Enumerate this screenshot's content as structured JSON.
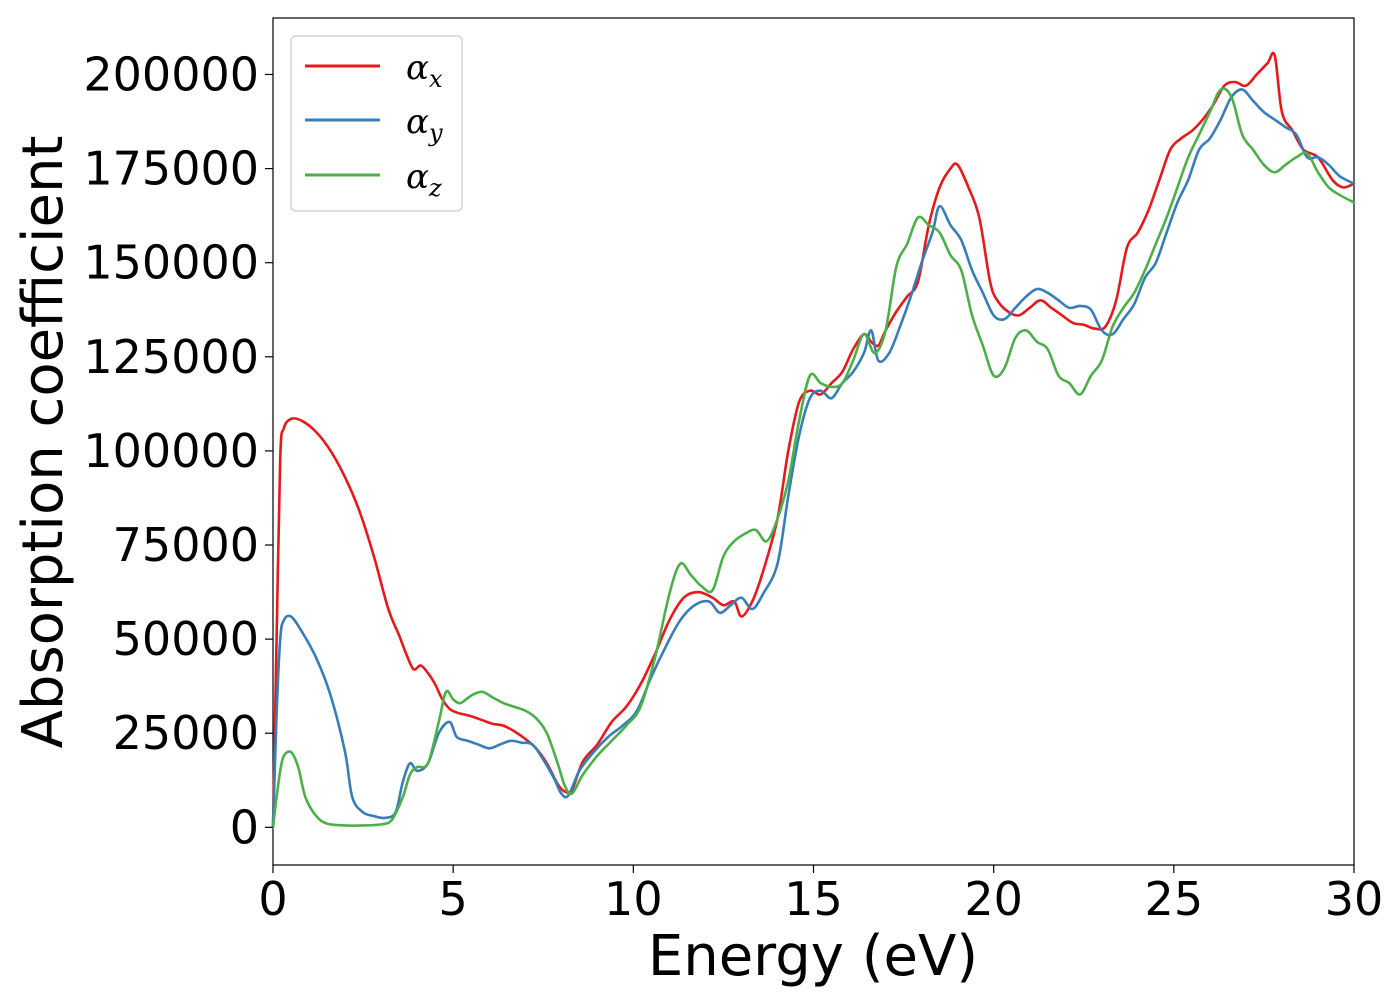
{
  "chart_data": {
    "type": "line",
    "title": "",
    "xlabel": "Energy (eV)",
    "ylabel": "Absorption coefficient",
    "xlim": [
      0,
      30
    ],
    "ylim": [
      -10000,
      215000
    ],
    "xticks": [
      0,
      5,
      10,
      15,
      20,
      25,
      30
    ],
    "xtick_labels": [
      "0",
      "5",
      "10",
      "15",
      "20",
      "25",
      "30"
    ],
    "yticks": [
      0,
      25000,
      50000,
      75000,
      100000,
      125000,
      150000,
      175000,
      200000
    ],
    "ytick_labels": [
      "0",
      "25000",
      "50000",
      "75000",
      "100000",
      "125000",
      "150000",
      "175000",
      "200000"
    ],
    "grid": false,
    "legend_position": "top-left",
    "series": [
      {
        "name": "αx",
        "symbol": "α",
        "subscript": "x",
        "color": "#e41a1c",
        "x": [
          0,
          0.1,
          0.2,
          0.3,
          0.5,
          0.8,
          1.2,
          1.6,
          2.0,
          2.4,
          2.8,
          3.2,
          3.5,
          3.7,
          3.9,
          4.1,
          4.3,
          4.5,
          4.7,
          4.9,
          5.1,
          5.3,
          5.5,
          5.8,
          6.1,
          6.4,
          6.7,
          7.0,
          7.3,
          7.6,
          7.9,
          8.1,
          8.3,
          8.6,
          9.0,
          9.4,
          9.8,
          10.2,
          10.6,
          11.0,
          11.4,
          11.8,
          12.2,
          12.5,
          12.8,
          13.0,
          13.3,
          13.6,
          14.0,
          14.3,
          14.6,
          14.9,
          15.2,
          15.5,
          15.8,
          16.1,
          16.4,
          16.6,
          16.8,
          17.0,
          17.3,
          17.6,
          17.9,
          18.2,
          18.5,
          18.8,
          19.0,
          19.3,
          19.6,
          19.9,
          20.1,
          20.4,
          20.7,
          21.0,
          21.3,
          21.6,
          21.9,
          22.2,
          22.5,
          22.8,
          23.1,
          23.4,
          23.7,
          24.0,
          24.3,
          24.6,
          24.9,
          25.2,
          25.5,
          25.8,
          26.1,
          26.4,
          26.7,
          27.0,
          27.3,
          27.6,
          27.8,
          28.0,
          28.3,
          28.6,
          29.0,
          29.4,
          29.7,
          30.0
        ],
        "values": [
          0,
          50000,
          98000,
          106000,
          108500,
          108000,
          105000,
          100000,
          93000,
          84000,
          72000,
          58000,
          51000,
          46000,
          42000,
          43000,
          41000,
          38000,
          34000,
          31500,
          30500,
          30000,
          29500,
          28500,
          27500,
          27000,
          25500,
          23500,
          21000,
          17000,
          11500,
          9500,
          10000,
          17500,
          22000,
          28000,
          32000,
          38000,
          46000,
          55000,
          61000,
          62500,
          61000,
          59000,
          60000,
          56000,
          60000,
          68000,
          82000,
          100000,
          113000,
          116000,
          115000,
          118000,
          121000,
          127000,
          131000,
          129000,
          128000,
          132000,
          137000,
          141000,
          145000,
          160000,
          170000,
          175000,
          176000,
          170000,
          162000,
          145000,
          140000,
          137000,
          136000,
          138000,
          140000,
          138000,
          136000,
          134000,
          133500,
          132500,
          133000,
          140000,
          154000,
          158000,
          164000,
          172000,
          180000,
          183000,
          185000,
          188000,
          192000,
          197000,
          198000,
          197000,
          200000,
          203000,
          205000,
          190000,
          185000,
          180000,
          178000,
          172000,
          170000,
          171000
        ]
      },
      {
        "name": "αy",
        "symbol": "α",
        "subscript": "y",
        "color": "#377eb8",
        "x": [
          0,
          0.1,
          0.2,
          0.3,
          0.5,
          0.8,
          1.2,
          1.6,
          2.0,
          2.2,
          2.5,
          2.8,
          3.1,
          3.4,
          3.6,
          3.8,
          4.0,
          4.3,
          4.6,
          4.9,
          5.1,
          5.4,
          5.7,
          6.0,
          6.3,
          6.6,
          6.9,
          7.2,
          7.5,
          7.8,
          8.0,
          8.2,
          8.5,
          8.9,
          9.3,
          9.7,
          10.1,
          10.5,
          10.9,
          11.3,
          11.7,
          12.1,
          12.4,
          12.7,
          13.0,
          13.3,
          13.6,
          14.0,
          14.3,
          14.6,
          14.9,
          15.2,
          15.5,
          15.8,
          16.1,
          16.4,
          16.6,
          16.8,
          17.1,
          17.4,
          17.7,
          18.0,
          18.3,
          18.5,
          18.8,
          19.1,
          19.4,
          19.7,
          20.0,
          20.3,
          20.6,
          20.9,
          21.2,
          21.5,
          21.8,
          22.1,
          22.4,
          22.7,
          23.0,
          23.3,
          23.6,
          23.9,
          24.2,
          24.5,
          24.8,
          25.1,
          25.4,
          25.7,
          26.0,
          26.3,
          26.6,
          26.9,
          27.2,
          27.5,
          27.8,
          28.1,
          28.4,
          28.7,
          29.0,
          29.3,
          29.6,
          30.0
        ],
        "values": [
          0,
          30000,
          50000,
          55000,
          56000,
          52000,
          45000,
          35000,
          20000,
          8000,
          4000,
          3000,
          2500,
          4000,
          12000,
          17000,
          15000,
          17000,
          25000,
          28000,
          24000,
          23000,
          22000,
          21000,
          22000,
          23000,
          22500,
          22000,
          18000,
          13000,
          9000,
          8500,
          15000,
          20000,
          24000,
          27000,
          31000,
          40000,
          48000,
          55000,
          59000,
          60000,
          57000,
          59000,
          61000,
          58000,
          62000,
          70000,
          88000,
          104000,
          114000,
          116000,
          114000,
          118000,
          121000,
          126000,
          132000,
          124000,
          126000,
          133000,
          141000,
          150000,
          158000,
          165000,
          160000,
          156000,
          148000,
          142000,
          136000,
          135000,
          138000,
          141000,
          143000,
          142000,
          140000,
          138000,
          138500,
          137500,
          132000,
          131000,
          135000,
          139000,
          146000,
          150000,
          158000,
          166000,
          172000,
          180000,
          183000,
          188000,
          194000,
          196000,
          193000,
          190000,
          188000,
          186000,
          184000,
          178000,
          178000,
          176000,
          173000,
          171000
        ]
      },
      {
        "name": "αz",
        "symbol": "α",
        "subscript": "z",
        "color": "#4daf4a",
        "x": [
          0,
          0.1,
          0.2,
          0.3,
          0.5,
          0.7,
          0.9,
          1.2,
          1.5,
          2.0,
          2.5,
          3.0,
          3.3,
          3.6,
          3.8,
          4.0,
          4.3,
          4.6,
          4.8,
          5.0,
          5.2,
          5.5,
          5.8,
          6.1,
          6.4,
          6.7,
          7.0,
          7.3,
          7.6,
          7.9,
          8.1,
          8.3,
          8.6,
          9.0,
          9.4,
          9.8,
          10.2,
          10.6,
          11.0,
          11.3,
          11.6,
          11.9,
          12.2,
          12.5,
          12.8,
          13.1,
          13.4,
          13.7,
          14.0,
          14.3,
          14.6,
          14.9,
          15.2,
          15.5,
          15.8,
          16.1,
          16.4,
          16.7,
          17.0,
          17.3,
          17.6,
          17.9,
          18.2,
          18.5,
          18.8,
          19.1,
          19.4,
          19.7,
          20.0,
          20.3,
          20.6,
          20.9,
          21.2,
          21.5,
          21.8,
          22.1,
          22.4,
          22.7,
          23.0,
          23.3,
          23.6,
          23.9,
          24.2,
          24.5,
          24.8,
          25.1,
          25.4,
          25.7,
          26.0,
          26.3,
          26.6,
          26.9,
          27.2,
          27.5,
          27.8,
          28.1,
          28.4,
          28.7,
          29.0,
          29.3,
          29.6,
          30.0
        ],
        "values": [
          0,
          8000,
          15000,
          19000,
          20000,
          16000,
          8000,
          3000,
          1000,
          500,
          500,
          800,
          2000,
          8000,
          14000,
          16000,
          17000,
          28000,
          36000,
          34000,
          33000,
          35000,
          36000,
          34500,
          33000,
          32000,
          31000,
          29000,
          25000,
          17000,
          11000,
          9000,
          14000,
          19000,
          23000,
          27000,
          32000,
          45000,
          62000,
          70000,
          67000,
          64000,
          63000,
          72000,
          76000,
          78000,
          79000,
          76000,
          82000,
          92000,
          108000,
          120000,
          118000,
          117000,
          118000,
          124000,
          131000,
          126000,
          132000,
          149000,
          155000,
          162000,
          160000,
          158000,
          152000,
          148000,
          136000,
          128000,
          120000,
          122000,
          130000,
          132000,
          129000,
          127000,
          120000,
          118000,
          115000,
          120000,
          124000,
          133000,
          138000,
          142000,
          148000,
          155000,
          162000,
          170000,
          178000,
          184000,
          190000,
          196000,
          194000,
          184000,
          180000,
          176000,
          174000,
          176000,
          178000,
          179000,
          174000,
          170000,
          168000,
          166000
        ]
      }
    ]
  }
}
